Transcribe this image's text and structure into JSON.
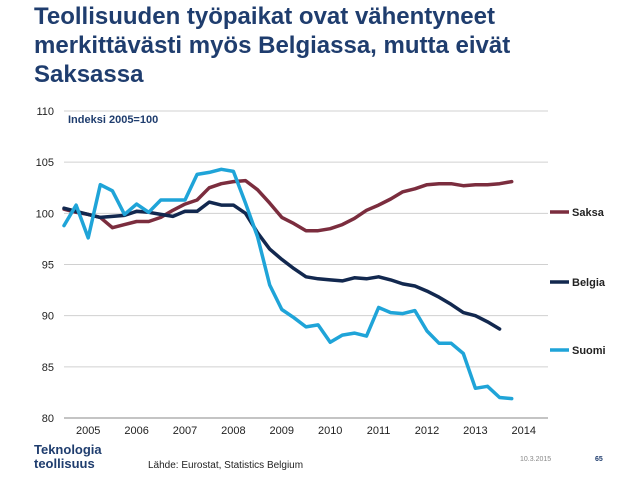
{
  "title": "Teollisuuden työpaikat ovat vähentyneet merkittävästi myös Belgiassa, mutta eivät Saksassa",
  "chart_data": {
    "type": "line",
    "annotation": "Indeksi 2005=100",
    "ylim": [
      80,
      110
    ],
    "yticks": [
      80,
      85,
      90,
      95,
      100,
      105,
      110
    ],
    "xlim": [
      2004.5,
      2014.5
    ],
    "xticks": [
      2005,
      2006,
      2007,
      2008,
      2009,
      2010,
      2011,
      2012,
      2013,
      2014
    ],
    "series": [
      {
        "name": "Saksa",
        "color": "#7b2d3e",
        "x": [
          2004.5,
          2004.75,
          2005,
          2005.25,
          2005.5,
          2005.75,
          2006,
          2006.25,
          2006.5,
          2006.75,
          2007,
          2007.25,
          2007.5,
          2007.75,
          2008,
          2008.25,
          2008.5,
          2008.75,
          2009,
          2009.25,
          2009.5,
          2009.75,
          2010,
          2010.25,
          2010.5,
          2010.75,
          2011,
          2011.25,
          2011.5,
          2011.75,
          2012,
          2012.25,
          2012.5,
          2012.75,
          2013,
          2013.25,
          2013.5,
          2013.75
        ],
        "values": [
          100.4,
          100.1,
          99.9,
          99.6,
          98.6,
          98.9,
          99.2,
          99.2,
          99.6,
          100.3,
          100.9,
          101.3,
          102.5,
          102.9,
          103.1,
          103.2,
          102.3,
          101.0,
          99.6,
          99.0,
          98.3,
          98.3,
          98.5,
          98.9,
          99.5,
          100.3,
          100.8,
          101.4,
          102.1,
          102.4,
          102.8,
          102.9,
          102.9,
          102.7,
          102.8,
          102.8,
          102.9,
          103.1
        ]
      },
      {
        "name": "Belgia",
        "color": "#12284f",
        "x": [
          2004.5,
          2004.75,
          2005,
          2005.25,
          2005.5,
          2005.75,
          2006,
          2006.25,
          2006.5,
          2006.75,
          2007,
          2007.25,
          2007.5,
          2007.75,
          2008,
          2008.25,
          2008.5,
          2008.75,
          2009,
          2009.25,
          2009.5,
          2009.75,
          2010,
          2010.25,
          2010.5,
          2010.75,
          2011,
          2011.25,
          2011.5,
          2011.75,
          2012,
          2012.25,
          2012.5,
          2012.75,
          2013,
          2013.25,
          2013.5
        ],
        "values": [
          100.5,
          100.2,
          99.9,
          99.6,
          99.7,
          99.8,
          100.2,
          100.1,
          99.9,
          99.7,
          100.2,
          100.2,
          101.1,
          100.8,
          100.8,
          100.0,
          98.1,
          96.5,
          95.5,
          94.6,
          93.8,
          93.6,
          93.5,
          93.4,
          93.7,
          93.6,
          93.8,
          93.5,
          93.1,
          92.9,
          92.4,
          91.8,
          91.1,
          90.3,
          90.0,
          89.4,
          88.7
        ]
      },
      {
        "name": "Suomi",
        "color": "#1fa4d8",
        "x": [
          2004.5,
          2004.75,
          2005,
          2005.25,
          2005.5,
          2005.75,
          2006,
          2006.25,
          2006.5,
          2006.75,
          2007,
          2007.25,
          2007.5,
          2007.75,
          2008,
          2008.25,
          2008.5,
          2008.75,
          2009,
          2009.25,
          2009.5,
          2009.75,
          2010,
          2010.25,
          2010.5,
          2010.75,
          2011,
          2011.25,
          2011.5,
          2011.75,
          2012,
          2012.25,
          2012.5,
          2012.75,
          2013,
          2013.25,
          2013.5,
          2013.75
        ],
        "values": [
          98.8,
          100.8,
          97.6,
          102.8,
          102.2,
          99.9,
          100.9,
          100.1,
          101.3,
          101.3,
          101.3,
          103.8,
          104.0,
          104.3,
          104.1,
          101.0,
          97.7,
          93.0,
          90.6,
          89.8,
          88.9,
          89.1,
          87.4,
          88.1,
          88.3,
          88.0,
          90.8,
          90.3,
          90.2,
          90.5,
          88.5,
          87.3,
          87.3,
          86.3,
          82.9,
          83.1,
          82.0,
          81.9
        ]
      }
    ]
  },
  "footer": {
    "logo_line1": "Teknologia",
    "logo_line2": "teollisuus",
    "source": "Lähde: Eurostat, Statistics Belgium",
    "date": "10.3.2015",
    "page": "65"
  }
}
